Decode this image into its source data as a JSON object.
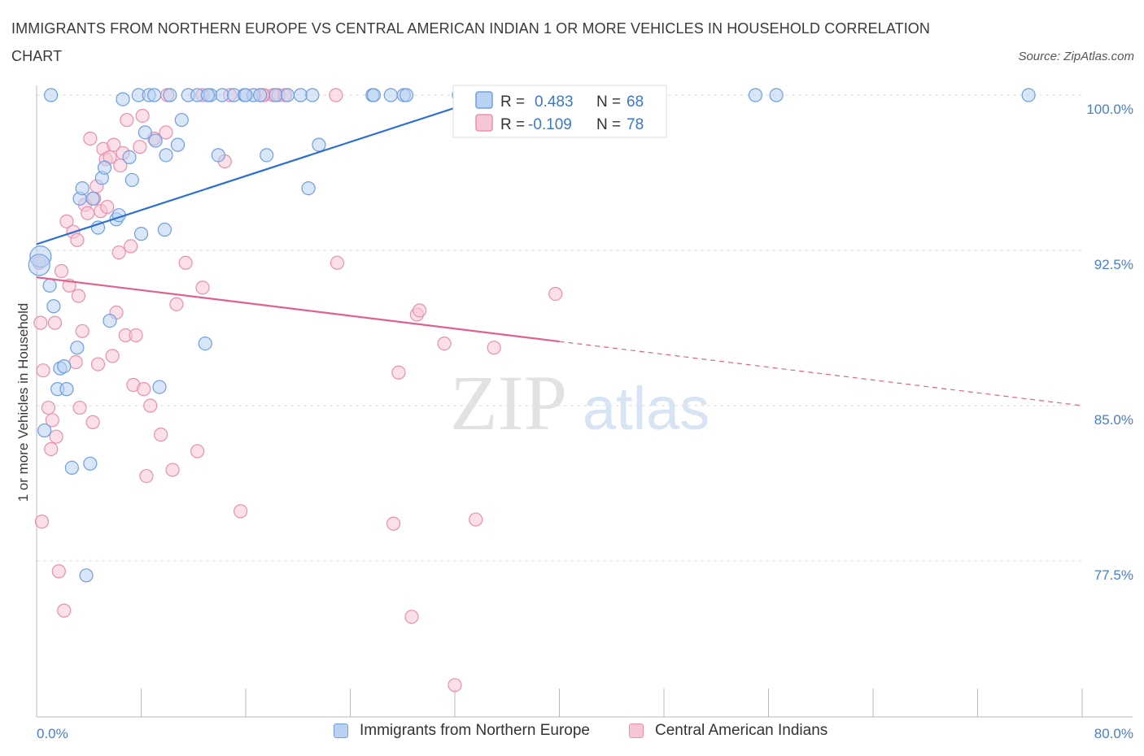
{
  "header": {
    "title": "IMMIGRANTS FROM NORTHERN EUROPE VS CENTRAL AMERICAN INDIAN 1 OR MORE VEHICLES IN HOUSEHOLD CORRELATION CHART",
    "source": "Source: ZipAtlas.com"
  },
  "watermark": {
    "zip": "ZIP",
    "atlas": "atlas"
  },
  "colors": {
    "blue_fill": "#b9d2f3",
    "blue_stroke": "#6f9ee0",
    "blue_line": "#2b6fd1",
    "pink_fill": "#f7c6d6",
    "pink_stroke": "#ea8fae",
    "pink_line": "#e0608f",
    "tick_text": "#4a7ec9",
    "grid": "#dddddd"
  },
  "legend_box": {
    "rows": [
      {
        "r_label": "R =",
        "r_value": "0.483",
        "n_label": "N =",
        "n_value": "68",
        "color": "blue"
      },
      {
        "r_label": "R =",
        "r_value": "-0.109",
        "n_label": "N =",
        "n_value": "78",
        "color": "pink"
      }
    ]
  },
  "bottom_legend": [
    {
      "label": "Immigrants from Northern Europe",
      "color": "blue"
    },
    {
      "label": "Central American Indians",
      "color": "pink"
    }
  ],
  "chart_data": {
    "type": "scatter",
    "title": "IMMIGRANTS FROM NORTHERN EUROPE VS CENTRAL AMERICAN INDIAN 1 OR MORE VEHICLES IN HOUSEHOLD CORRELATION CHART",
    "xlabel": "",
    "ylabel": "1 or more Vehicles in Household",
    "xlim": [
      0,
      80
    ],
    "ylim": [
      70,
      100
    ],
    "x_tick_labels": [
      "0.0%",
      "80.0%"
    ],
    "y_ticks": [
      100.0,
      92.5,
      85.0,
      77.5
    ],
    "y_tick_labels": [
      "100.0%",
      "92.5%",
      "85.0%",
      "77.5%"
    ],
    "grid": true,
    "legend_position": "top-center",
    "series": [
      {
        "name": "Immigrants from Northern Europe",
        "color": "blue",
        "trend": {
          "x": [
            0,
            35
          ],
          "y": [
            92.8,
            100.0
          ]
        },
        "points": [
          [
            0.3,
            92.2
          ],
          [
            0.2,
            91.8
          ],
          [
            0.6,
            83.8
          ],
          [
            1.0,
            90.8
          ],
          [
            1.3,
            89.8
          ],
          [
            1.6,
            85.8
          ],
          [
            1.8,
            86.8
          ],
          [
            2.1,
            86.9
          ],
          [
            2.3,
            85.8
          ],
          [
            2.7,
            82.0
          ],
          [
            3.1,
            87.8
          ],
          [
            3.3,
            95.0
          ],
          [
            3.5,
            95.5
          ],
          [
            3.8,
            76.8
          ],
          [
            4.1,
            82.2
          ],
          [
            4.3,
            95.0
          ],
          [
            4.7,
            93.6
          ],
          [
            5.0,
            96.0
          ],
          [
            5.2,
            96.5
          ],
          [
            5.6,
            89.1
          ],
          [
            6.1,
            94.0
          ],
          [
            6.3,
            94.2
          ],
          [
            6.6,
            99.8
          ],
          [
            7.1,
            97.0
          ],
          [
            7.3,
            95.9
          ],
          [
            7.8,
            100.0
          ],
          [
            8.0,
            93.3
          ],
          [
            8.3,
            98.2
          ],
          [
            8.6,
            100.0
          ],
          [
            9.1,
            97.8
          ],
          [
            9.4,
            85.9
          ],
          [
            9.8,
            93.5
          ],
          [
            9.9,
            97.1
          ],
          [
            10.2,
            100.0
          ],
          [
            10.8,
            97.6
          ],
          [
            11.1,
            98.8
          ],
          [
            11.6,
            100.0
          ],
          [
            12.3,
            100.0
          ],
          [
            12.9,
            88.0
          ],
          [
            13.3,
            100.0
          ],
          [
            13.9,
            97.1
          ],
          [
            14.2,
            100.0
          ],
          [
            15.1,
            100.0
          ],
          [
            15.9,
            100.0
          ],
          [
            16.6,
            100.0
          ],
          [
            17.1,
            100.0
          ],
          [
            18.3,
            100.0
          ],
          [
            19.2,
            100.0
          ],
          [
            17.6,
            97.1
          ],
          [
            20.2,
            100.0
          ],
          [
            20.8,
            95.5
          ],
          [
            21.1,
            100.0
          ],
          [
            21.6,
            97.6
          ],
          [
            25.7,
            100.0
          ],
          [
            25.8,
            100.0
          ],
          [
            27.1,
            100.0
          ],
          [
            28.1,
            100.0
          ],
          [
            28.3,
            100.0
          ],
          [
            32.3,
            100.0
          ],
          [
            34.0,
            100.0
          ],
          [
            34.9,
            100.0
          ],
          [
            55.0,
            100.0
          ],
          [
            56.6,
            100.0
          ],
          [
            75.9,
            100.0
          ],
          [
            1.1,
            100.0
          ],
          [
            9.0,
            100.0
          ],
          [
            13.1,
            100.0
          ],
          [
            16.0,
            100.0
          ]
        ]
      },
      {
        "name": "Central American Indians",
        "color": "pink",
        "trend": {
          "x": [
            0,
            40
          ],
          "y": [
            91.2,
            88.1
          ]
        },
        "trend_dashed": {
          "x": [
            40,
            80
          ],
          "y": [
            88.1,
            85.0
          ]
        },
        "points": [
          [
            0.3,
            89.0
          ],
          [
            0.4,
            79.4
          ],
          [
            0.5,
            86.7
          ],
          [
            0.9,
            84.9
          ],
          [
            1.1,
            82.9
          ],
          [
            1.2,
            84.3
          ],
          [
            1.4,
            89.0
          ],
          [
            1.5,
            83.5
          ],
          [
            1.7,
            77.0
          ],
          [
            1.9,
            91.5
          ],
          [
            2.1,
            75.1
          ],
          [
            2.3,
            93.9
          ],
          [
            2.5,
            90.8
          ],
          [
            2.8,
            93.4
          ],
          [
            3.0,
            87.1
          ],
          [
            3.1,
            93.0
          ],
          [
            3.2,
            90.3
          ],
          [
            3.3,
            84.9
          ],
          [
            3.5,
            88.6
          ],
          [
            3.7,
            94.7
          ],
          [
            3.9,
            94.3
          ],
          [
            4.1,
            97.9
          ],
          [
            4.3,
            84.2
          ],
          [
            4.4,
            95.0
          ],
          [
            4.6,
            95.6
          ],
          [
            4.7,
            87.0
          ],
          [
            4.9,
            94.4
          ],
          [
            5.1,
            97.4
          ],
          [
            5.3,
            96.9
          ],
          [
            5.4,
            94.6
          ],
          [
            5.6,
            97.0
          ],
          [
            5.8,
            87.4
          ],
          [
            5.9,
            97.6
          ],
          [
            6.1,
            89.5
          ],
          [
            6.3,
            92.4
          ],
          [
            6.4,
            96.6
          ],
          [
            6.6,
            97.2
          ],
          [
            6.8,
            88.4
          ],
          [
            6.9,
            98.8
          ],
          [
            7.2,
            92.7
          ],
          [
            7.4,
            86.0
          ],
          [
            7.6,
            88.4
          ],
          [
            7.9,
            97.5
          ],
          [
            8.1,
            99.0
          ],
          [
            8.2,
            85.8
          ],
          [
            8.4,
            81.6
          ],
          [
            8.7,
            85.0
          ],
          [
            9.0,
            97.9
          ],
          [
            9.5,
            83.6
          ],
          [
            9.9,
            98.2
          ],
          [
            10.4,
            81.9
          ],
          [
            10.7,
            89.9
          ],
          [
            11.4,
            91.9
          ],
          [
            12.3,
            82.8
          ],
          [
            12.7,
            90.7
          ],
          [
            14.4,
            96.8
          ],
          [
            15.6,
            79.9
          ],
          [
            17.4,
            100.0
          ],
          [
            18.1,
            100.0
          ],
          [
            18.5,
            100.0
          ],
          [
            19.0,
            100.0
          ],
          [
            22.9,
            100.0
          ],
          [
            23.0,
            91.9
          ],
          [
            27.3,
            79.3
          ],
          [
            27.7,
            86.6
          ],
          [
            28.7,
            74.8
          ],
          [
            29.1,
            89.4
          ],
          [
            29.3,
            89.6
          ],
          [
            31.2,
            88.0
          ],
          [
            32.0,
            71.5
          ],
          [
            33.6,
            79.5
          ],
          [
            35.0,
            87.8
          ],
          [
            39.7,
            90.4
          ],
          [
            0.2,
            91.9
          ],
          [
            10.0,
            100.0
          ],
          [
            12.7,
            100.0
          ],
          [
            14.8,
            100.0
          ],
          [
            17.3,
            100.0
          ]
        ]
      }
    ]
  }
}
